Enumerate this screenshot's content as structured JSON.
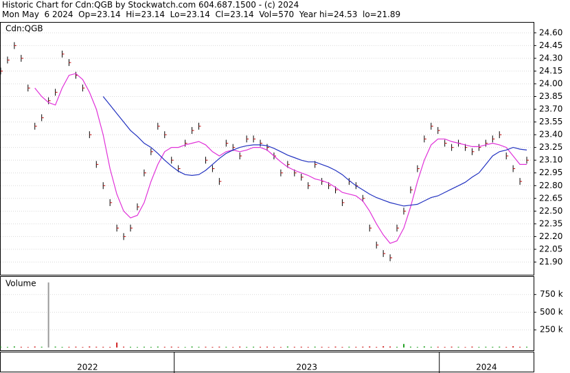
{
  "chart_data": {
    "type": "stock",
    "title": "Historic Chart for Cdn:QGB by Stockwatch.com 604.687.1500 - (c) 2024",
    "subtitle": "Mon May  6 2024  Op=23.14  Hi=23.14  Lo=23.14  Cl=23.14  Vol=570  Year hi=24.53  lo=21.89",
    "symbol_label": "Cdn:QGB",
    "x": [
      0,
      1,
      2,
      3,
      4,
      5,
      6,
      7,
      8,
      9,
      10,
      11,
      12,
      13,
      14,
      15,
      16,
      17,
      18,
      19,
      20,
      21,
      22,
      23,
      24,
      25,
      26,
      27,
      28,
      29,
      30,
      31,
      32,
      33,
      34,
      35,
      36,
      37,
      38,
      39,
      40,
      41,
      42,
      43,
      44,
      45,
      46,
      47,
      48,
      49,
      50,
      51,
      52,
      53,
      54,
      55,
      56,
      57,
      58,
      59,
      60,
      61,
      62,
      63,
      64,
      65,
      66,
      67,
      68,
      69,
      70,
      71,
      72,
      73,
      74,
      75,
      76,
      77
    ],
    "xlim": [
      0,
      78
    ],
    "ylim": [
      21.75,
      24.72
    ],
    "yticks": [
      {
        "value": 24.6,
        "label": "24.60"
      },
      {
        "value": 24.45,
        "label": "24.45"
      },
      {
        "value": 24.3,
        "label": "24.30"
      },
      {
        "value": 24.15,
        "label": "24.15"
      },
      {
        "value": 24.0,
        "label": "24.00"
      },
      {
        "value": 23.85,
        "label": "23.85"
      },
      {
        "value": 23.7,
        "label": "23.70"
      },
      {
        "value": 23.55,
        "label": "23.55"
      },
      {
        "value": 23.4,
        "label": "23.40"
      },
      {
        "value": 23.25,
        "label": "23.25"
      },
      {
        "value": 23.1,
        "label": "23.10"
      },
      {
        "value": 22.95,
        "label": "22.95"
      },
      {
        "value": 22.8,
        "label": "22.80"
      },
      {
        "value": 22.65,
        "label": "22.65"
      },
      {
        "value": 22.5,
        "label": "22.50"
      },
      {
        "value": 22.35,
        "label": "22.35"
      },
      {
        "value": 22.2,
        "label": "22.20"
      },
      {
        "value": 22.05,
        "label": "22.05"
      },
      {
        "value": 21.9,
        "label": "21.90"
      }
    ],
    "grid": true,
    "series": [
      {
        "style": "ticks",
        "color": "#000000",
        "values": [
          24.15,
          24.28,
          24.45,
          24.3,
          23.95,
          23.5,
          23.6,
          23.8,
          23.9,
          24.35,
          24.25,
          24.1,
          23.95,
          23.4,
          23.05,
          22.8,
          22.6,
          22.3,
          22.2,
          22.3,
          22.55,
          22.95,
          23.2,
          23.5,
          23.4,
          23.1,
          23.0,
          23.3,
          23.45,
          23.5,
          23.1,
          23.0,
          22.85,
          23.3,
          23.25,
          23.15,
          23.35,
          23.35,
          23.3,
          23.25,
          23.15,
          22.95,
          23.05,
          22.95,
          22.9,
          22.8,
          23.05,
          22.85,
          22.8,
          22.75,
          22.6,
          22.85,
          22.8,
          22.65,
          22.3,
          22.1,
          22.0,
          21.95,
          22.3,
          22.5,
          22.75,
          23.0,
          23.35,
          23.5,
          23.45,
          23.3,
          23.25,
          23.3,
          23.25,
          23.2,
          23.25,
          23.3,
          23.35,
          23.4,
          23.15,
          23.0,
          22.85,
          23.1
        ]
      },
      {
        "style": "line",
        "color": "#e030d8",
        "values": [
          null,
          null,
          null,
          null,
          null,
          23.95,
          23.85,
          23.78,
          23.75,
          23.95,
          24.1,
          24.12,
          24.05,
          23.9,
          23.7,
          23.4,
          23.0,
          22.7,
          22.5,
          22.42,
          22.45,
          22.6,
          22.85,
          23.05,
          23.2,
          23.25,
          23.25,
          23.28,
          23.3,
          23.32,
          23.28,
          23.2,
          23.15,
          23.2,
          23.22,
          23.2,
          23.22,
          23.25,
          23.25,
          23.22,
          23.15,
          23.08,
          23.02,
          22.98,
          22.95,
          22.92,
          22.88,
          22.86,
          22.83,
          22.78,
          22.72,
          22.7,
          22.68,
          22.62,
          22.5,
          22.35,
          22.22,
          22.12,
          22.15,
          22.3,
          22.55,
          22.85,
          23.1,
          23.28,
          23.35,
          23.35,
          23.32,
          23.3,
          23.28,
          23.26,
          23.26,
          23.28,
          23.3,
          23.28,
          23.25,
          23.15,
          23.05,
          23.05
        ]
      },
      {
        "style": "line",
        "color": "#2030c0",
        "values": [
          null,
          null,
          null,
          null,
          null,
          null,
          null,
          null,
          null,
          null,
          null,
          null,
          null,
          null,
          null,
          23.85,
          23.75,
          23.65,
          23.55,
          23.45,
          23.38,
          23.3,
          23.25,
          23.18,
          23.1,
          23.03,
          22.97,
          22.93,
          22.92,
          22.93,
          22.98,
          23.05,
          23.12,
          23.18,
          23.22,
          23.25,
          23.27,
          23.28,
          23.28,
          23.27,
          23.24,
          23.2,
          23.16,
          23.13,
          23.1,
          23.08,
          23.08,
          23.05,
          23.02,
          22.98,
          22.93,
          22.86,
          22.8,
          22.75,
          22.7,
          22.66,
          22.63,
          22.6,
          22.58,
          22.56,
          22.57,
          22.58,
          22.62,
          22.66,
          22.68,
          22.72,
          22.76,
          22.8,
          22.84,
          22.9,
          22.95,
          23.05,
          23.15,
          23.2,
          23.22,
          23.25,
          23.23,
          23.22
        ]
      }
    ],
    "volume": {
      "label": "Volume",
      "values": [
        12000,
        9000,
        15000,
        10000,
        8000,
        14000,
        11000,
        920000,
        13000,
        9000,
        10000,
        12000,
        8000,
        15000,
        11000,
        10000,
        9000,
        70000,
        12000,
        10000,
        8000,
        11000,
        9000,
        13000,
        10000,
        12000,
        9000,
        8000,
        14000,
        10000,
        11000,
        9000,
        12000,
        10000,
        8000,
        13000,
        9000,
        11000,
        10000,
        12000,
        9000,
        8000,
        14000,
        10000,
        11000,
        9000,
        12000,
        10000,
        8000,
        13000,
        9000,
        11000,
        10000,
        12000,
        15000,
        9000,
        18000,
        14000,
        10000,
        50000,
        12000,
        9000,
        16000,
        10000,
        11000,
        9000,
        12000,
        10000,
        8000,
        13000,
        9000,
        11000,
        10000,
        12000,
        9000,
        18000,
        10000,
        11000
      ],
      "ylim": [
        -40000,
        1000000
      ],
      "yticks": [
        {
          "value": 750000,
          "label": "750 k"
        },
        {
          "value": 500000,
          "label": "500 k"
        },
        {
          "value": 250000,
          "label": "250 k"
        }
      ]
    },
    "periods": [
      {
        "label": "2022",
        "start": 0,
        "end": 25.4
      },
      {
        "label": "2023",
        "start": 25.4,
        "end": 64.2
      },
      {
        "label": "2024",
        "start": 64.2,
        "end": 78
      }
    ]
  }
}
